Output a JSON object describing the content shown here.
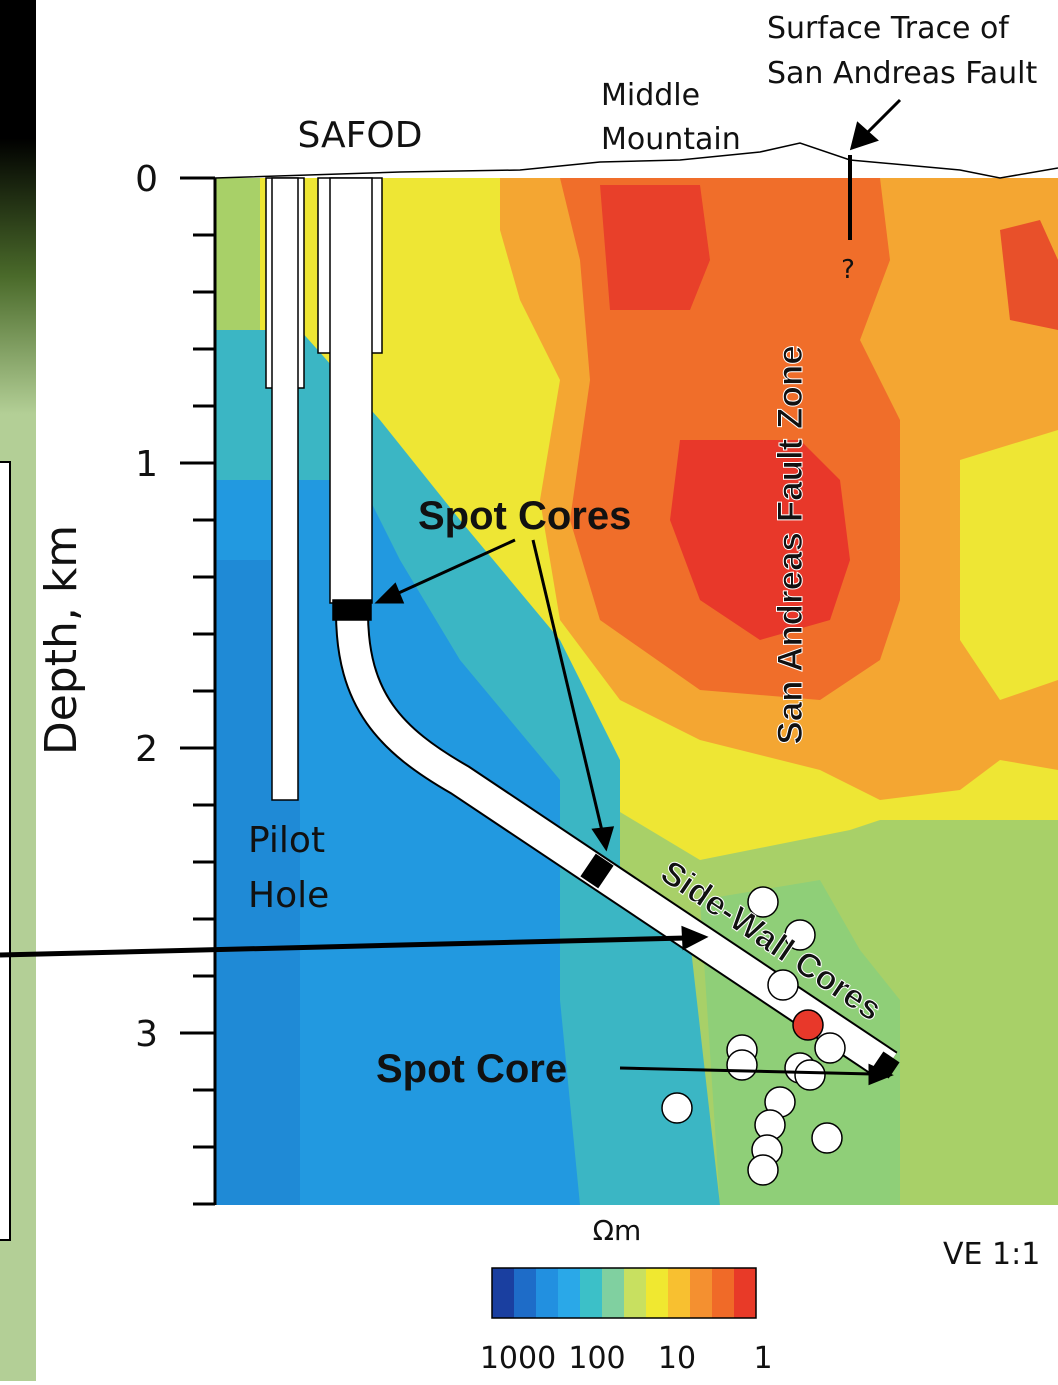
{
  "figure": {
    "site_label": "SAFOD",
    "mountain_label": [
      "Middle",
      "Mountain"
    ],
    "fault_trace_label": [
      "Surface Trace of",
      "San Andreas Fault"
    ],
    "question_mark": "?",
    "fault_zone_label": "San Andreas Fault Zone",
    "spot_cores_label": "Spot Cores",
    "side_wall_cores_label": "Side-Wall Cores",
    "spot_core_label": "Spot Core",
    "pilot_hole_label": [
      "Pilot",
      "Hole"
    ],
    "axis": {
      "label": "Depth, km",
      "ticks": [
        0,
        1,
        2,
        3
      ]
    },
    "colorbar": {
      "unit": "Ωm",
      "labels": [
        1000,
        100,
        10,
        1
      ]
    },
    "scale_note": "VE 1:1"
  }
}
